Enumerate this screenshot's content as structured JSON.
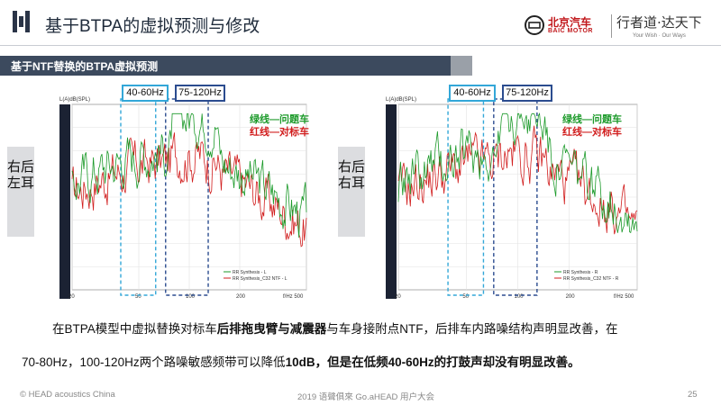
{
  "header": {
    "logo_icon": "head-logo-icon",
    "title": "基于BTPA的虚拟预测与修改",
    "brand_cn": "北京汽车",
    "brand_en": "BAIC MOTOR",
    "brand_slogan": "行者道·达天下",
    "brand_slogan_en": "Your Wish · Our Ways"
  },
  "section": {
    "title": "基于NTF替换的BTPA虚拟预测"
  },
  "panels": [
    {
      "side_label": "右后左耳",
      "badge_low": "40-60Hz",
      "badge_high": "75-120Hz",
      "legend_green": "绿线—问题车",
      "legend_red": "红线—对标车",
      "y_axis_label": "L(A)dB(SPL)",
      "x_ticks": [
        "20",
        "50",
        "100",
        "200",
        "f/Hz 500"
      ],
      "series_labels": [
        "RR Synthesis - L",
        "RR Synthesis_C32 NTF - L"
      ]
    },
    {
      "side_label": "右后右耳",
      "badge_low": "40-60Hz",
      "badge_high": "75-120Hz",
      "legend_green": "绿线—问题车",
      "legend_red": "红线—对标车",
      "y_axis_label": "L(A)dB(SPL)",
      "x_ticks": [
        "20",
        "50",
        "100",
        "200",
        "f/Hz 500"
      ],
      "series_labels": [
        "RR Synthesis - R",
        "RR Synthesis_C32 NTF - R"
      ]
    }
  ],
  "body": {
    "line1_a": "在BTPA模型中虚拟替换对标车",
    "line1_b": "后排拖曳臂与减震器",
    "line1_c": "与车身接附点NTF，后排车内路噪结构声明显改善，在",
    "line2_a": "70-80Hz，100-120Hz两个路噪敏感频带可以降低",
    "line2_b": "10dB，但是在低频40-60Hz的打鼓声却没有明显改善。"
  },
  "footer": {
    "left": "© HEAD acoustics China",
    "center": "2019 语聲俱來 Go.aHEAD 用户大会",
    "page": "25"
  },
  "colors": {
    "green_series": "#1c9a2a",
    "red_series": "#d11d1d",
    "section_bar": "#3c4a5e",
    "badge_blue": "#2b4c8f",
    "badge_cyan": "#33a7d8"
  }
}
